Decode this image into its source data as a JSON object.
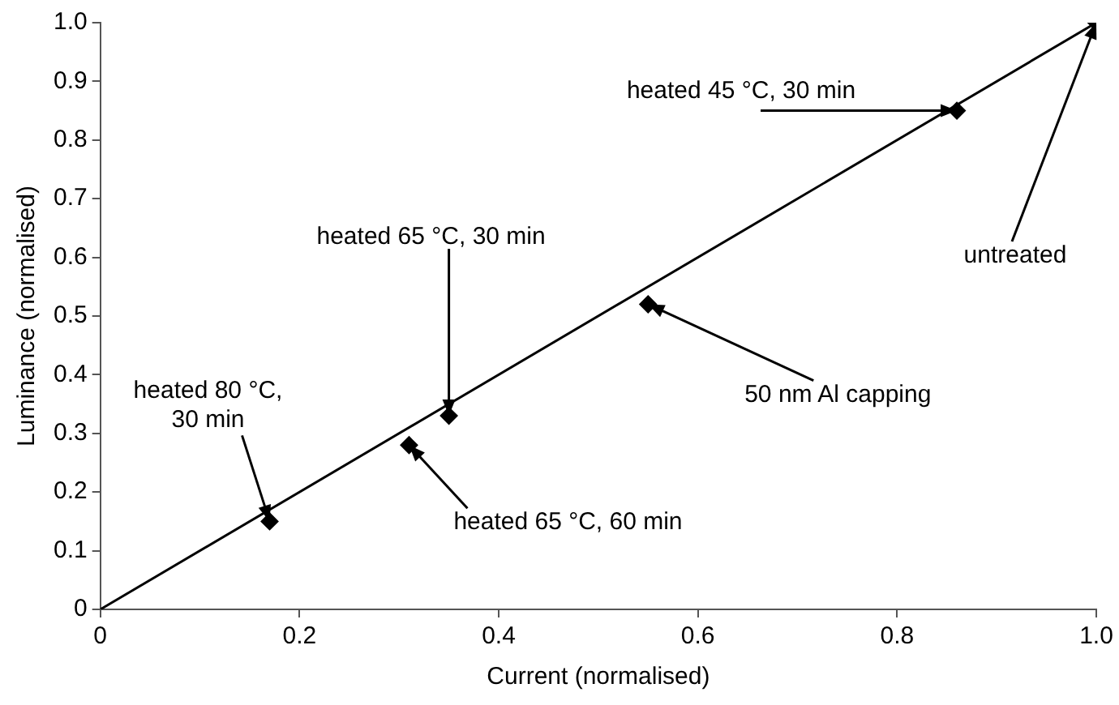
{
  "chart_data": {
    "type": "scatter",
    "xlabel": "Current (normalised)",
    "ylabel": "Luminance (normalised)",
    "xlim": [
      0,
      1
    ],
    "ylim": [
      0,
      1
    ],
    "xticks": [
      0,
      0.2,
      0.4,
      0.6,
      0.8,
      {
        "value": 1,
        "label": "1.0"
      }
    ],
    "yticks": [
      0,
      0.1,
      0.2,
      0.3,
      0.4,
      0.5,
      0.6,
      0.7,
      0.8,
      0.9,
      {
        "value": 1,
        "label": "1.0"
      }
    ],
    "grid": false,
    "legend": false,
    "series": [
      {
        "type": "scatter",
        "color": "#000000",
        "marker": "diamond",
        "x": [
          0.17,
          0.31,
          0.35,
          0.55,
          0.86,
          1.0
        ],
        "values": [
          0.15,
          0.28,
          0.33,
          0.52,
          0.85,
          1.0
        ]
      },
      {
        "type": "line",
        "color": "#000000",
        "marker": "none",
        "line_style": "solid",
        "x": [
          0,
          1
        ],
        "values": [
          0,
          1
        ]
      }
    ],
    "annotations": [
      {
        "text": "heated 80 °C,\n30 min",
        "x": 0.17,
        "y": 0.15
      },
      {
        "text": "heated 65 °C, 60 min",
        "x": 0.31,
        "y": 0.28
      },
      {
        "text": "heated 65 °C, 30 min",
        "x": 0.35,
        "y": 0.33
      },
      {
        "text": "50 nm Al capping",
        "x": 0.55,
        "y": 0.52
      },
      {
        "text": "heated 45 °C, 30 min",
        "x": 0.86,
        "y": 0.85
      },
      {
        "text": "untreated",
        "x": 1.0,
        "y": 1.0
      }
    ]
  }
}
